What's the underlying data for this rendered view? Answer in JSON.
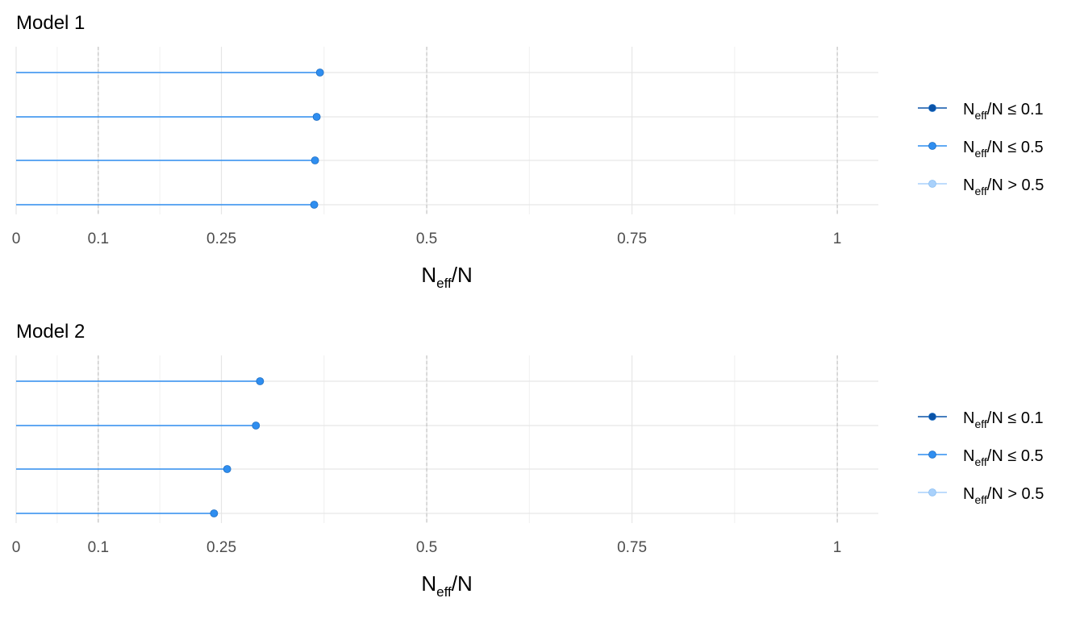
{
  "colors": {
    "low": "#0a53a8",
    "mid": "#2f8ef0",
    "high": "#a9d1fb",
    "grid_major": "#e6e6e6",
    "grid_minor": "#f0f0f0",
    "reference": "#c4c4c4"
  },
  "chart_data": [
    {
      "type": "lollipop",
      "title": "Model 1",
      "xlabel": {
        "main": "N",
        "sub": "eff",
        "tail": "/N"
      },
      "xlim": [
        0,
        1.05
      ],
      "xticks": [
        {
          "value": 0,
          "label": "0"
        },
        {
          "value": 0.1,
          "label": "0.1"
        },
        {
          "value": 0.25,
          "label": "0.25"
        },
        {
          "value": 0.5,
          "label": "0.5"
        },
        {
          "value": 0.75,
          "label": "0.75"
        },
        {
          "value": 1,
          "label": "1"
        }
      ],
      "reference_lines": [
        0.1,
        0.5,
        1
      ],
      "grid": true,
      "legend_position": "right",
      "legend": [
        {
          "main": "N",
          "sub": "eff",
          "tail": "/N ≤ 0.1",
          "color_key": "low"
        },
        {
          "main": "N",
          "sub": "eff",
          "tail": "/N ≤ 0.5",
          "color_key": "mid"
        },
        {
          "main": "N",
          "sub": "eff",
          "tail": "/N > 0.5",
          "color_key": "high"
        }
      ],
      "values": [
        0.37,
        0.366,
        0.364,
        0.363
      ],
      "value_colors": [
        "mid",
        "mid",
        "mid",
        "mid"
      ]
    },
    {
      "type": "lollipop",
      "title": "Model 2",
      "xlabel": {
        "main": "N",
        "sub": "eff",
        "tail": "/N"
      },
      "xlim": [
        0,
        1.05
      ],
      "xticks": [
        {
          "value": 0,
          "label": "0"
        },
        {
          "value": 0.1,
          "label": "0.1"
        },
        {
          "value": 0.25,
          "label": "0.25"
        },
        {
          "value": 0.5,
          "label": "0.5"
        },
        {
          "value": 0.75,
          "label": "0.75"
        },
        {
          "value": 1,
          "label": "1"
        }
      ],
      "reference_lines": [
        0.1,
        0.5,
        1
      ],
      "grid": true,
      "legend_position": "right",
      "legend": [
        {
          "main": "N",
          "sub": "eff",
          "tail": "/N ≤ 0.1",
          "color_key": "low"
        },
        {
          "main": "N",
          "sub": "eff",
          "tail": "/N ≤ 0.5",
          "color_key": "mid"
        },
        {
          "main": "N",
          "sub": "eff",
          "tail": "/N > 0.5",
          "color_key": "high"
        }
      ],
      "values": [
        0.297,
        0.292,
        0.257,
        0.241
      ],
      "value_colors": [
        "mid",
        "mid",
        "mid",
        "mid"
      ]
    }
  ]
}
